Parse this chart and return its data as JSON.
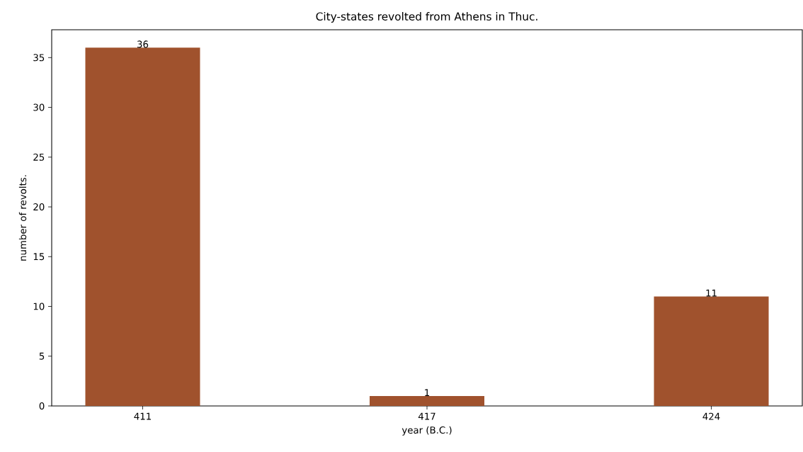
{
  "chart_data": {
    "type": "bar",
    "title": "City-states revolted from Athens in Thuc.",
    "xlabel": "year (B.C.)",
    "ylabel": "number of revolts.",
    "categories": [
      "411",
      "417",
      "424"
    ],
    "values": [
      36,
      1,
      11
    ],
    "color": "#a0522d",
    "ylim": [
      0,
      37.8
    ],
    "yticks": [
      0,
      5,
      10,
      15,
      20,
      25,
      30,
      35
    ],
    "data_labels": true
  }
}
